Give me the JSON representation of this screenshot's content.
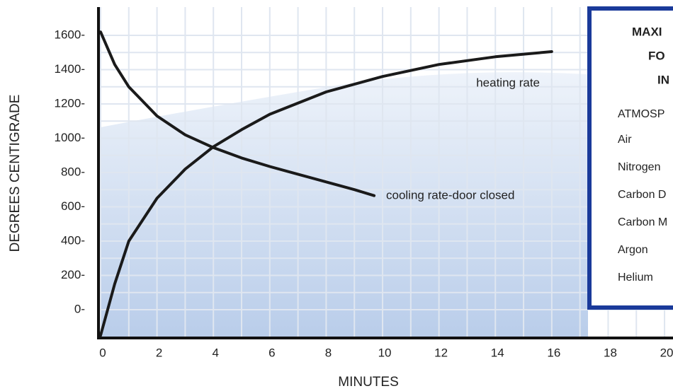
{
  "chart_data": {
    "type": "line",
    "x_label": "MINUTES",
    "y_label": "DEGREES CENTIGRADE",
    "xlim": [
      0,
      20.3
    ],
    "ylim": [
      -165,
      1765
    ],
    "xticks": [
      0,
      2,
      4,
      6,
      8,
      10,
      12,
      14,
      16,
      18,
      20
    ],
    "yticks": [
      {
        "value": 0,
        "label": "0-"
      },
      {
        "value": 200,
        "label": "200-"
      },
      {
        "value": 400,
        "label": "400-"
      },
      {
        "value": 600,
        "label": "600-"
      },
      {
        "value": 800,
        "label": "800-"
      },
      {
        "value": 1000,
        "label": "1000-"
      },
      {
        "value": 1200,
        "label": "1200-"
      },
      {
        "value": 1400,
        "label": "1400-"
      },
      {
        "value": 1600,
        "label": "1600-"
      }
    ],
    "grid": true,
    "series": [
      {
        "name": "heating rate",
        "color": "#1a1a1a",
        "x": [
          0,
          0.5,
          1,
          2,
          3,
          4,
          5,
          6,
          8,
          10,
          12,
          14,
          16
        ],
        "values": [
          -150,
          150,
          400,
          650,
          820,
          950,
          1050,
          1140,
          1270,
          1360,
          1430,
          1475,
          1505
        ]
      },
      {
        "name": "cooling rate-door closed",
        "color": "#1a1a1a",
        "x": [
          0,
          0.5,
          1,
          2,
          3,
          4,
          5,
          6,
          7,
          8,
          9,
          9.7
        ],
        "values": [
          1620,
          1430,
          1300,
          1130,
          1020,
          945,
          885,
          835,
          790,
          745,
          700,
          665
        ]
      }
    ]
  },
  "panel": {
    "title_lines": [
      "MAXI",
      "FO",
      "IN"
    ],
    "header": "ATMOSP",
    "items": [
      "Air",
      "Nitrogen",
      "Carbon D",
      "Carbon M",
      "Argon",
      "Helium"
    ]
  }
}
